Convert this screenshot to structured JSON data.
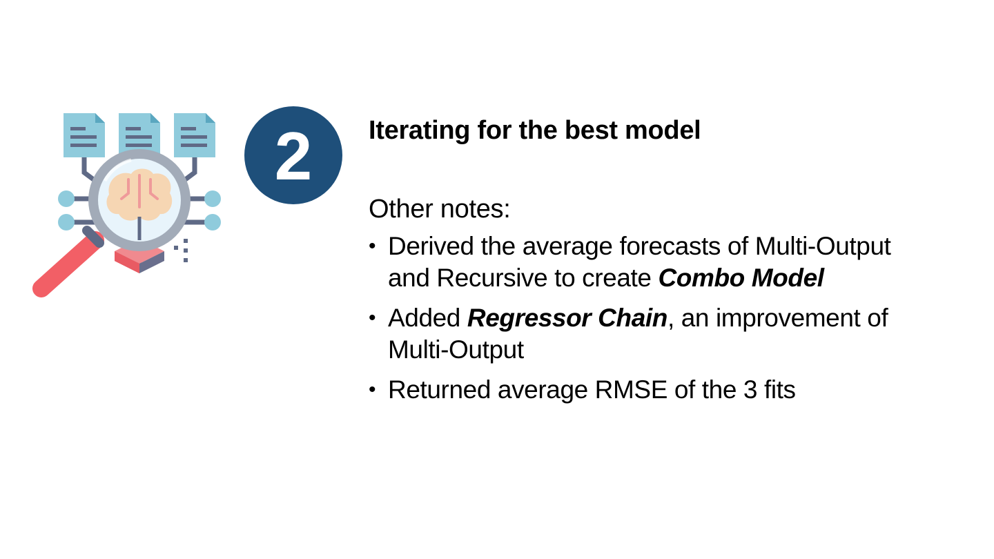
{
  "step": {
    "number": "2"
  },
  "heading": "Iterating for the best model",
  "notes_label": "Other notes:",
  "bullets": [
    {
      "before": "Derived the average forecasts of Multi-Output and Recursive to create ",
      "emphasis": "Combo Model",
      "after": ""
    },
    {
      "before": "Added ",
      "emphasis": "Regressor Chain",
      "after": ", an improvement of Multi-Output"
    },
    {
      "before": "Returned average RMSE of the 3 fits",
      "emphasis": "",
      "after": ""
    }
  ],
  "bullet_glyph": "•",
  "illustration": {
    "icon": "magnifier-brain-documents-icon",
    "colors": {
      "document": "#8fcbdc",
      "document_fold": "#5aa7c0",
      "document_lines": "#5f6a86",
      "circuit": "#5f6a86",
      "node": "#8fcbdc",
      "lens_ring": "#a2abb8",
      "lens_glass": "#e8f4fb",
      "brain": "#f6d6b3",
      "brain_lines": "#ef9a9a",
      "handle": "#f25f66",
      "cube_left": "#e95b63",
      "cube_right": "#6a6f8d"
    }
  },
  "colors": {
    "badge": "#1e4f7a",
    "badge_text": "#ffffff",
    "text": "#000000",
    "background": "#ffffff"
  }
}
